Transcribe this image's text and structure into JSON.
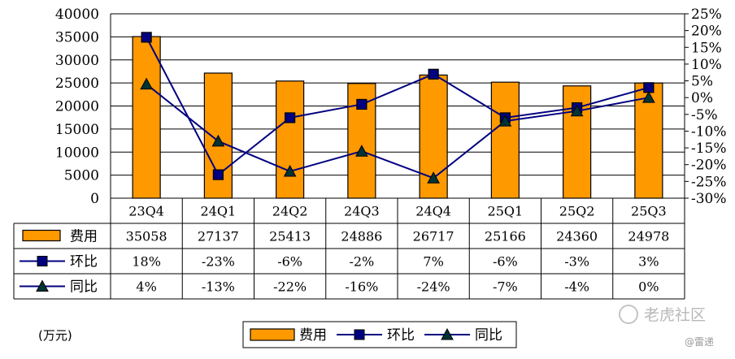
{
  "chart_data": {
    "type": "bar",
    "categories": [
      "23Q4",
      "24Q1",
      "24Q2",
      "24Q3",
      "24Q4",
      "25Q1",
      "25Q2",
      "25Q3"
    ],
    "series": [
      {
        "name": "费用",
        "type": "bar",
        "axis": "left",
        "values": [
          35058,
          27137,
          25413,
          24886,
          26717,
          25166,
          24360,
          24978
        ],
        "labels": [
          "35058",
          "27137",
          "25413",
          "24886",
          "26717",
          "25166",
          "24360",
          "24978"
        ]
      },
      {
        "name": "环比",
        "type": "line",
        "axis": "right",
        "marker": "square",
        "values": [
          18,
          -23,
          -6,
          -2,
          7,
          -6,
          -3,
          3
        ],
        "labels": [
          "18%",
          "-23%",
          "-6%",
          "-2%",
          "7%",
          "-6%",
          "-3%",
          "3%"
        ]
      },
      {
        "name": "同比",
        "type": "line",
        "axis": "right",
        "marker": "triangle",
        "values": [
          4,
          -13,
          -22,
          -16,
          -24,
          -7,
          -4,
          0
        ],
        "labels": [
          "4%",
          "-13%",
          "-22%",
          "-16%",
          "-24%",
          "-7%",
          "-4%",
          "0%"
        ]
      }
    ],
    "left_axis": {
      "min": 0,
      "max": 40000,
      "step": 5000,
      "ticks": [
        "0",
        "5000",
        "10000",
        "15000",
        "20000",
        "25000",
        "30000",
        "35000",
        "40000"
      ]
    },
    "right_axis": {
      "min": -30,
      "max": 25,
      "step": 5,
      "ticks": [
        "-30%",
        "-25%",
        "-20%",
        "-15%",
        "-10%",
        "-5%",
        "0%",
        "5%",
        "10%",
        "15%",
        "20%",
        "25%"
      ]
    },
    "unit_label": "(万元)",
    "grid": true,
    "data_table": true,
    "legend_position": "bottom",
    "colors": {
      "bar": "#FF9900",
      "bar_edge": "#000000",
      "line": "#000080",
      "marker": "#000000",
      "grid": "#000000"
    }
  },
  "watermark": {
    "text": "老虎社区",
    "sub": "@雷递"
  }
}
